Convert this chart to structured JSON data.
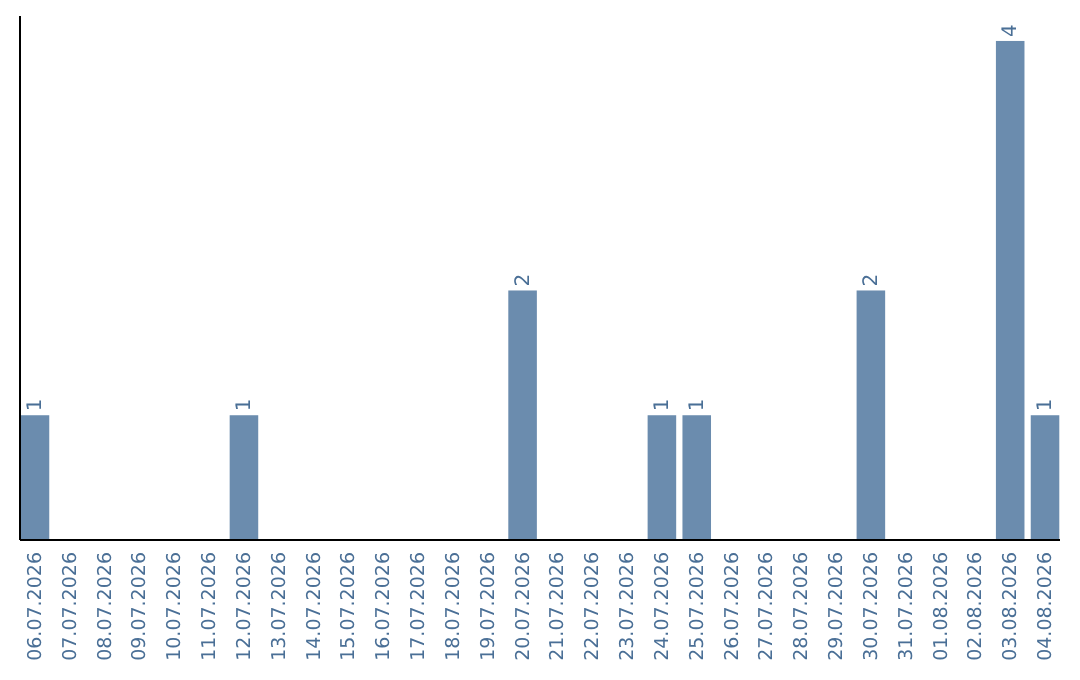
{
  "chart_data": {
    "type": "bar",
    "categories": [
      "06.07.2026",
      "07.07.2026",
      "08.07.2026",
      "09.07.2026",
      "10.07.2026",
      "11.07.2026",
      "12.07.2026",
      "13.07.2026",
      "14.07.2026",
      "15.07.2026",
      "16.07.2026",
      "17.07.2026",
      "18.07.2026",
      "19.07.2026",
      "20.07.2026",
      "21.07.2026",
      "22.07.2026",
      "23.07.2026",
      "24.07.2026",
      "25.07.2026",
      "26.07.2026",
      "27.07.2026",
      "28.07.2026",
      "29.07.2026",
      "30.07.2026",
      "31.07.2026",
      "01.08.2026",
      "02.08.2026",
      "03.08.2026",
      "04.08.2026"
    ],
    "values": [
      1,
      0,
      0,
      0,
      0,
      0,
      1,
      0,
      0,
      0,
      0,
      0,
      0,
      0,
      2,
      0,
      0,
      0,
      1,
      1,
      0,
      0,
      0,
      0,
      2,
      0,
      0,
      0,
      4,
      1
    ],
    "value_labels": [
      "1",
      null,
      null,
      null,
      null,
      null,
      "1",
      null,
      null,
      null,
      null,
      null,
      null,
      null,
      "2",
      null,
      null,
      null,
      "1",
      "1",
      null,
      null,
      null,
      null,
      "2",
      null,
      null,
      null,
      "4",
      "1"
    ],
    "color": "#6b8cae"
  }
}
